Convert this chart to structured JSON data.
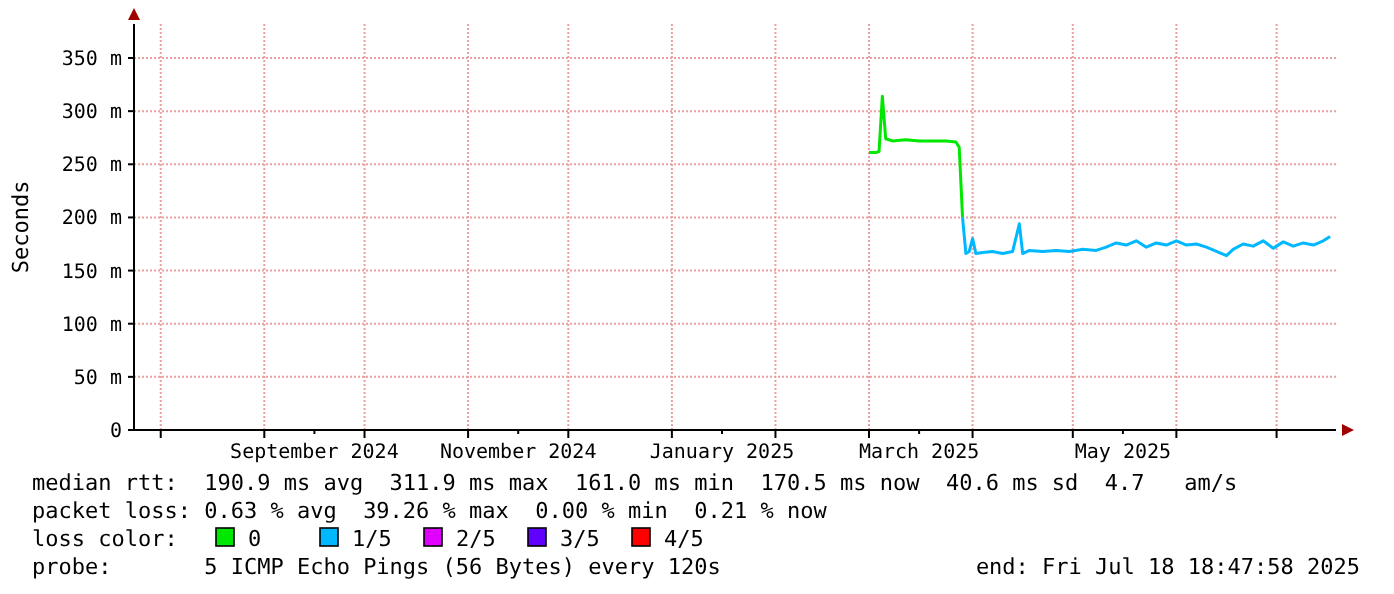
{
  "chart_data": {
    "type": "line",
    "ylabel": "Seconds",
    "x": [
      "2025-03-01",
      "2025-03-03",
      "2025-03-04",
      "2025-03-05",
      "2025-03-06",
      "2025-03-08",
      "2025-03-12",
      "2025-03-16",
      "2025-03-20",
      "2025-03-24",
      "2025-03-27",
      "2025-03-28",
      "2025-03-29",
      "2025-03-30",
      "2025-03-31",
      "2025-04-01",
      "2025-04-02",
      "2025-04-04",
      "2025-04-07",
      "2025-04-10",
      "2025-04-13",
      "2025-04-15",
      "2025-04-16",
      "2025-04-18",
      "2025-04-22",
      "2025-04-26",
      "2025-04-30",
      "2025-05-04",
      "2025-05-08",
      "2025-05-11",
      "2025-05-14",
      "2025-05-17",
      "2025-05-20",
      "2025-05-23",
      "2025-05-26",
      "2025-05-29",
      "2025-06-01",
      "2025-06-04",
      "2025-06-07",
      "2025-06-10",
      "2025-06-13",
      "2025-06-16",
      "2025-06-18",
      "2025-06-21",
      "2025-06-24",
      "2025-06-27",
      "2025-06-30",
      "2025-07-03",
      "2025-07-06",
      "2025-07-09",
      "2025-07-12",
      "2025-07-15",
      "2025-07-17"
    ],
    "series": [
      {
        "name": "0",
        "color": "#00e800",
        "values": [
          261,
          261,
          262,
          314,
          274,
          272,
          273,
          272,
          272,
          272,
          271,
          266,
          200,
          null,
          null,
          null,
          null,
          null,
          null,
          null,
          null,
          null,
          null,
          null,
          null,
          null,
          null,
          null,
          null,
          null,
          null,
          null,
          null,
          null,
          null,
          null,
          null,
          null,
          null,
          null,
          null,
          null,
          null,
          null,
          null,
          null,
          null,
          null,
          null,
          null,
          null,
          null,
          null
        ]
      },
      {
        "name": "1/5",
        "color": "#00b8ff",
        "values": [
          null,
          null,
          null,
          null,
          null,
          null,
          null,
          null,
          null,
          null,
          null,
          null,
          200,
          166,
          168,
          180,
          166,
          167,
          168,
          166,
          168,
          194,
          166,
          169,
          168,
          169,
          168,
          170,
          169,
          172,
          176,
          174,
          178,
          172,
          176,
          174,
          178,
          174,
          175,
          172,
          168,
          164,
          170,
          175,
          173,
          178,
          171,
          177,
          173,
          176,
          174,
          178,
          182
        ]
      },
      {
        "name": "2/5",
        "color": "#e000ff",
        "values": [
          null,
          null,
          null,
          null,
          null,
          null,
          null,
          null,
          null,
          null,
          null,
          null,
          null,
          null,
          null,
          null,
          null,
          null,
          null,
          null,
          null,
          null,
          null,
          null,
          null,
          null,
          null,
          null,
          null,
          null,
          null,
          null,
          null,
          null,
          null,
          null,
          null,
          null,
          null,
          null,
          null,
          null,
          null,
          null,
          null,
          null,
          null,
          null,
          null,
          null,
          null,
          null,
          null
        ]
      },
      {
        "name": "3/5",
        "color": "#6000ff",
        "values": [
          null,
          null,
          null,
          null,
          null,
          null,
          null,
          null,
          null,
          null,
          null,
          null,
          null,
          null,
          null,
          null,
          null,
          null,
          null,
          null,
          null,
          null,
          null,
          null,
          null,
          null,
          null,
          null,
          null,
          null,
          null,
          null,
          null,
          null,
          null,
          null,
          null,
          null,
          null,
          null,
          null,
          null,
          null,
          null,
          null,
          null,
          null,
          null,
          null,
          null,
          null,
          null,
          null
        ]
      },
      {
        "name": "4/5",
        "color": "#ff0000",
        "values": [
          null,
          null,
          null,
          null,
          null,
          null,
          null,
          null,
          null,
          null,
          null,
          null,
          null,
          null,
          null,
          null,
          null,
          null,
          null,
          null,
          null,
          null,
          null,
          null,
          null,
          null,
          null,
          null,
          null,
          null,
          null,
          null,
          null,
          null,
          null,
          null,
          null,
          null,
          null,
          null,
          null,
          null,
          null,
          null,
          null,
          null,
          null,
          null,
          null,
          null,
          null,
          null,
          null
        ]
      }
    ],
    "xlim": [
      "2024-07-24",
      "2025-07-18T18:47"
    ],
    "xticks": [
      {
        "value": "2024-08-01",
        "label": null
      },
      {
        "value": "2024-09-01",
        "label": null
      },
      {
        "value": "2024-09-16",
        "label": "September 2024"
      },
      {
        "value": "2024-10-01",
        "label": null
      },
      {
        "value": "2024-11-01",
        "label": null
      },
      {
        "value": "2024-11-16",
        "label": "November 2024"
      },
      {
        "value": "2024-12-01",
        "label": null
      },
      {
        "value": "2025-01-01",
        "label": null
      },
      {
        "value": "2025-01-16",
        "label": "January 2025"
      },
      {
        "value": "2025-02-01",
        "label": null
      },
      {
        "value": "2025-03-01",
        "label": null
      },
      {
        "value": "2025-03-16",
        "label": "March 2025"
      },
      {
        "value": "2025-04-01",
        "label": null
      },
      {
        "value": "2025-05-01",
        "label": null
      },
      {
        "value": "2025-05-16",
        "label": "May 2025"
      },
      {
        "value": "2025-06-01",
        "label": null
      },
      {
        "value": "2025-07-01",
        "label": null
      }
    ],
    "ylim": [
      0,
      382
    ],
    "yticks": [
      0,
      {
        "value": 50,
        "label": "50 m"
      },
      {
        "value": 100,
        "label": "100 m"
      },
      {
        "value": 150,
        "label": "150 m"
      },
      {
        "value": 200,
        "label": "200 m"
      },
      {
        "value": 250,
        "label": "250 m"
      },
      {
        "value": 300,
        "label": "300 m"
      },
      {
        "value": 350,
        "label": "350 m"
      }
    ],
    "grid": true,
    "legend": "bottom",
    "legend_title": "loss color:",
    "marker": "none",
    "line_style": "solid",
    "annotations": [
      "median rtt:  190.9 ms avg  311.9 ms max  161.0 ms min  170.5 ms now  40.6 ms sd  4.7   am/s",
      "packet loss: 0.63 % avg  39.26 % max  0.00 % min  0.21 % now",
      "probe:       5 ICMP Echo Pings (56 Bytes) every 120s",
      "end: Fri Jul 18 18:47:58 2025"
    ]
  }
}
